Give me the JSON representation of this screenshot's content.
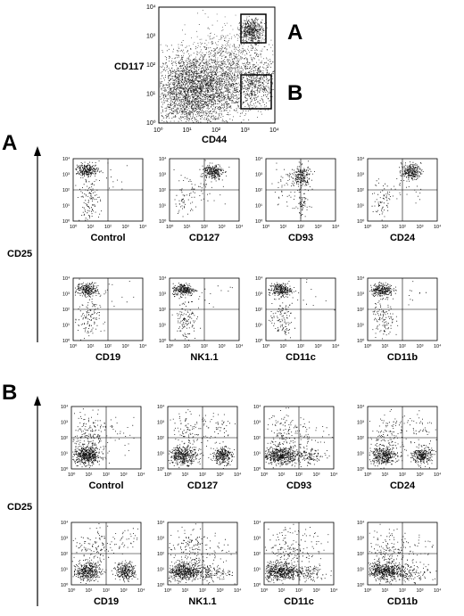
{
  "top_plot": {
    "y_label": "CD117",
    "x_label": "CD44",
    "gate_a_label": "A",
    "gate_b_label": "B"
  },
  "ticks": [
    "10⁰",
    "10¹",
    "10²",
    "10³",
    "10⁴"
  ],
  "section_a": {
    "letter": "A",
    "y_axis_label": "CD25",
    "rows": [
      [
        {
          "label": "Control",
          "pattern": "a_control"
        },
        {
          "label": "CD127",
          "pattern": "a_pos"
        },
        {
          "label": "CD93",
          "pattern": "a_mid"
        },
        {
          "label": "CD24",
          "pattern": "a_pos"
        }
      ],
      [
        {
          "label": "CD19",
          "pattern": "a_control"
        },
        {
          "label": "NK1.1",
          "pattern": "a_control"
        },
        {
          "label": "CD11c",
          "pattern": "a_control"
        },
        {
          "label": "CD11b",
          "pattern": "a_control"
        }
      ]
    ]
  },
  "section_b": {
    "letter": "B",
    "y_axis_label": "CD25",
    "rows": [
      [
        {
          "label": "Control",
          "pattern": "b_control"
        },
        {
          "label": "CD127",
          "pattern": "b_pos"
        },
        {
          "label": "CD93",
          "pattern": "b_spread"
        },
        {
          "label": "CD24",
          "pattern": "b_pos"
        }
      ],
      [
        {
          "label": "CD19",
          "pattern": "b_pos"
        },
        {
          "label": "NK1.1",
          "pattern": "b_spread"
        },
        {
          "label": "CD11c",
          "pattern": "b_spread"
        },
        {
          "label": "CD11b",
          "pattern": "b_spread"
        }
      ]
    ]
  },
  "colors": {
    "ink": "#000000",
    "dots": "#111111"
  }
}
